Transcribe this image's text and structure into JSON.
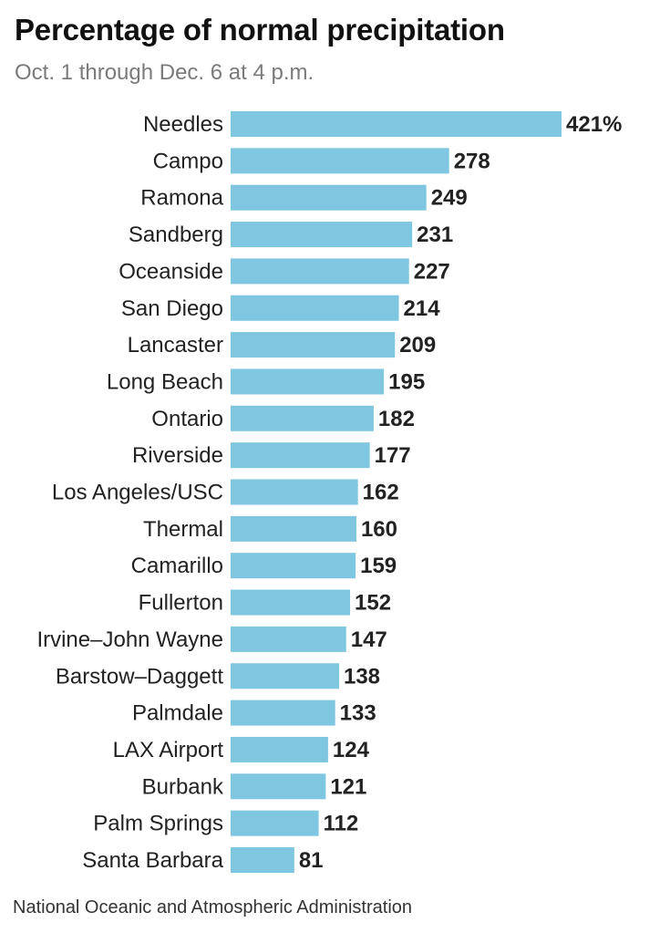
{
  "chart_data": {
    "type": "bar",
    "orientation": "horizontal",
    "title": "Percentage of normal precipitation",
    "subtitle": "Oct. 1 through Dec. 6 at 4 p.m.",
    "source": "National Oceanic and Atmospheric Administration",
    "categories": [
      "Needles",
      "Campo",
      "Ramona",
      "Sandberg",
      "Oceanside",
      "San Diego",
      "Lancaster",
      "Long Beach",
      "Ontario",
      "Riverside",
      "Los Angeles/USC",
      "Thermal",
      "Camarillo",
      "Fullerton",
      "Irvine–John Wayne",
      "Barstow–Daggett",
      "Palmdale",
      "LAX Airport",
      "Burbank",
      "Palm Springs",
      "Santa Barbara"
    ],
    "values": [
      421,
      278,
      249,
      231,
      227,
      214,
      209,
      195,
      182,
      177,
      162,
      160,
      159,
      152,
      147,
      138,
      133,
      124,
      121,
      112,
      81
    ],
    "value_labels": [
      "421%",
      "278",
      "249",
      "231",
      "227",
      "214",
      "209",
      "195",
      "182",
      "177",
      "162",
      "160",
      "159",
      "152",
      "147",
      "138",
      "133",
      "124",
      "121",
      "112",
      "81"
    ],
    "bar_color": "#7fc6e0",
    "grid": false,
    "legend": "none"
  }
}
